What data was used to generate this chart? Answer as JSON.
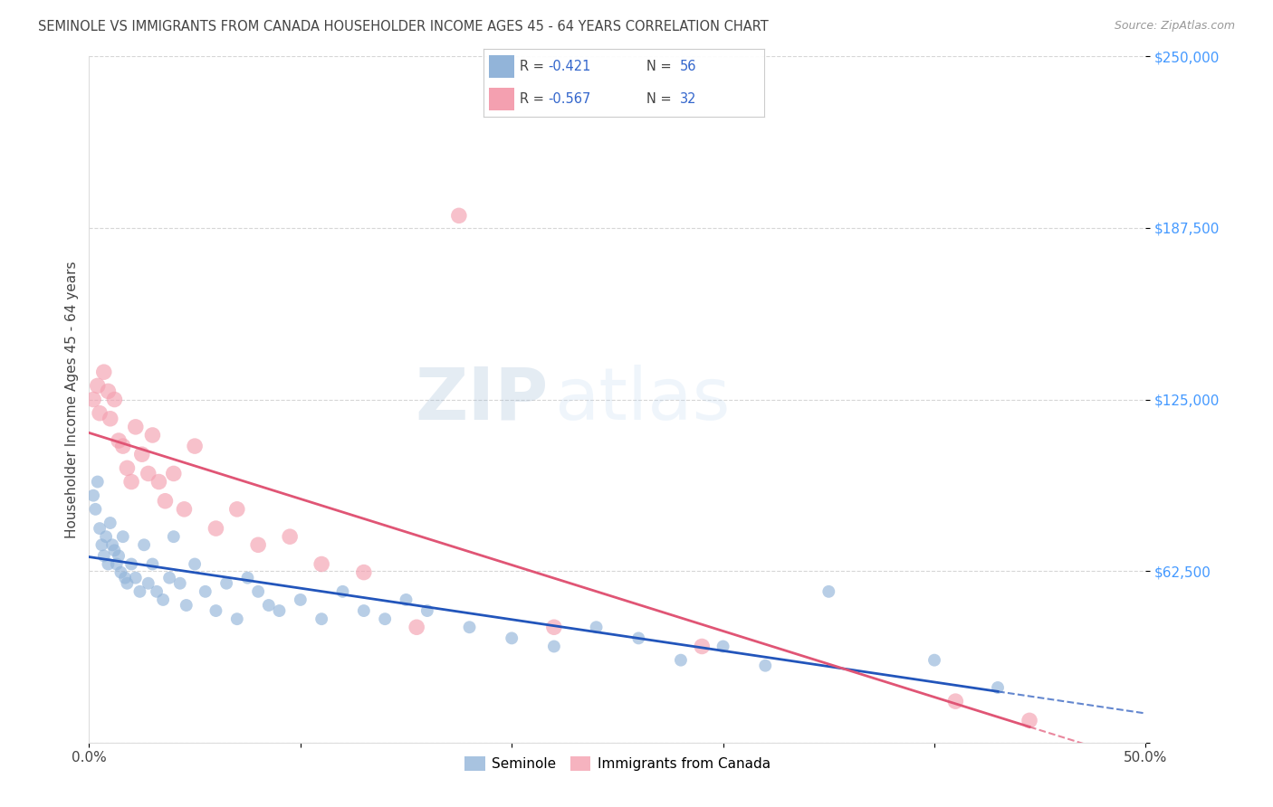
{
  "title": "SEMINOLE VS IMMIGRANTS FROM CANADA HOUSEHOLDER INCOME AGES 45 - 64 YEARS CORRELATION CHART",
  "source": "Source: ZipAtlas.com",
  "ylabel": "Householder Income Ages 45 - 64 years",
  "xlim": [
    0.0,
    0.5
  ],
  "ylim": [
    0,
    250000
  ],
  "yticks": [
    0,
    62500,
    125000,
    187500,
    250000
  ],
  "ytick_labels": [
    "",
    "$62,500",
    "$125,000",
    "$187,500",
    "$250,000"
  ],
  "xticks": [
    0.0,
    0.1,
    0.2,
    0.3,
    0.4,
    0.5
  ],
  "xtick_labels": [
    "0.0%",
    "",
    "",
    "",
    "",
    "50.0%"
  ],
  "watermark_zip": "ZIP",
  "watermark_atlas": "atlas",
  "legend_r1": "-0.421",
  "legend_n1": "56",
  "legend_r2": "-0.567",
  "legend_n2": "32",
  "blue_color": "#92B4D9",
  "pink_color": "#F4A0B0",
  "blue_line_color": "#2255BB",
  "pink_line_color": "#E05575",
  "title_color": "#444444",
  "ytick_color": "#4499FF",
  "xtick_color": "#444444",
  "background_color": "#FFFFFF",
  "grid_color": "#CCCCCC",
  "seminole_x": [
    0.002,
    0.003,
    0.004,
    0.005,
    0.006,
    0.007,
    0.008,
    0.009,
    0.01,
    0.011,
    0.012,
    0.013,
    0.014,
    0.015,
    0.016,
    0.017,
    0.018,
    0.02,
    0.022,
    0.024,
    0.026,
    0.028,
    0.03,
    0.032,
    0.035,
    0.038,
    0.04,
    0.043,
    0.046,
    0.05,
    0.055,
    0.06,
    0.065,
    0.07,
    0.075,
    0.08,
    0.085,
    0.09,
    0.1,
    0.11,
    0.12,
    0.13,
    0.14,
    0.15,
    0.16,
    0.18,
    0.2,
    0.22,
    0.24,
    0.26,
    0.28,
    0.3,
    0.32,
    0.35,
    0.4,
    0.43
  ],
  "seminole_y": [
    90000,
    85000,
    95000,
    78000,
    72000,
    68000,
    75000,
    65000,
    80000,
    72000,
    70000,
    65000,
    68000,
    62000,
    75000,
    60000,
    58000,
    65000,
    60000,
    55000,
    72000,
    58000,
    65000,
    55000,
    52000,
    60000,
    75000,
    58000,
    50000,
    65000,
    55000,
    48000,
    58000,
    45000,
    60000,
    55000,
    50000,
    48000,
    52000,
    45000,
    55000,
    48000,
    45000,
    52000,
    48000,
    42000,
    38000,
    35000,
    42000,
    38000,
    30000,
    35000,
    28000,
    55000,
    30000,
    20000
  ],
  "canada_x": [
    0.002,
    0.004,
    0.005,
    0.007,
    0.009,
    0.01,
    0.012,
    0.014,
    0.016,
    0.018,
    0.02,
    0.022,
    0.025,
    0.028,
    0.03,
    0.033,
    0.036,
    0.04,
    0.045,
    0.05,
    0.06,
    0.07,
    0.08,
    0.095,
    0.11,
    0.13,
    0.155,
    0.175,
    0.22,
    0.29,
    0.41,
    0.445
  ],
  "canada_y": [
    125000,
    130000,
    120000,
    135000,
    128000,
    118000,
    125000,
    110000,
    108000,
    100000,
    95000,
    115000,
    105000,
    98000,
    112000,
    95000,
    88000,
    98000,
    85000,
    108000,
    78000,
    85000,
    72000,
    75000,
    65000,
    62000,
    42000,
    192000,
    42000,
    35000,
    15000,
    8000
  ],
  "marker_size_blue": 100,
  "marker_size_pink": 160
}
